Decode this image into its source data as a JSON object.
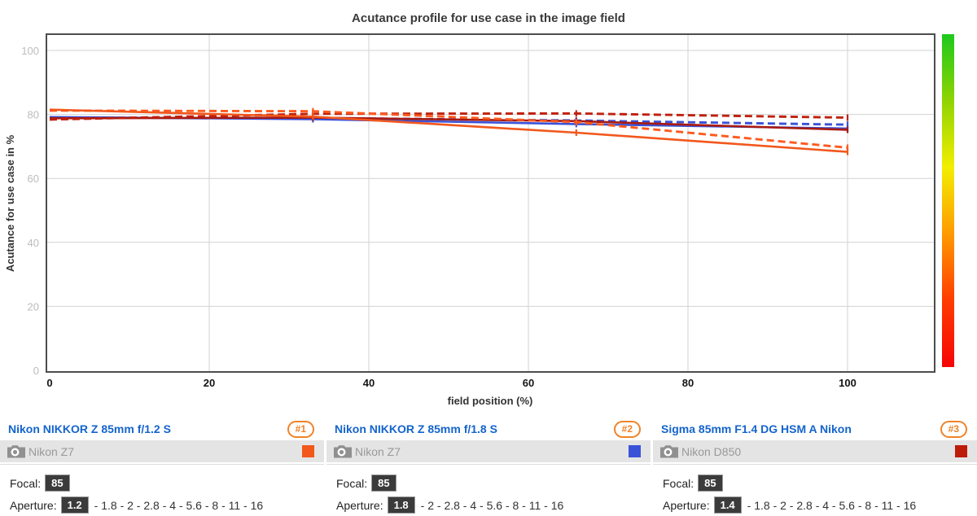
{
  "chart_data": {
    "type": "line",
    "title": "Acutance profile for use case in the image field",
    "xlabel": "field position (%)",
    "ylabel": "Acutance for use case in %",
    "xlim": [
      0,
      111
    ],
    "ylim": [
      0,
      105
    ],
    "xticks": [
      0,
      20,
      40,
      60,
      80,
      100
    ],
    "yticks": [
      0,
      20,
      40,
      60,
      80,
      100
    ],
    "grid": true,
    "x": [
      0,
      33,
      66,
      100
    ],
    "series": [
      {
        "id": "nikon-z-85mm-f1.8-dashed",
        "lens": "Nikon NIKKOR Z 85mm f/1.8 S",
        "aperture": "1.8",
        "style": "dashed",
        "color": "#3a52d8",
        "values": [
          79.0,
          78.9,
          78.1,
          76.8
        ]
      },
      {
        "id": "nikon-z-85mm-f1.8-solid",
        "lens": "Nikon NIKKOR Z 85mm f/1.8 S",
        "aperture": "1.8",
        "style": "solid",
        "color": "#3a52d8",
        "values": [
          79.2,
          78.5,
          77.0,
          75.6
        ]
      },
      {
        "id": "sigma-85mm-f1.4-solid",
        "lens": "Sigma 85mm F1.4 DG HSM A Nikon",
        "aperture": "1.4",
        "style": "solid",
        "color": "#a81a10",
        "values": [
          78.8,
          79.0,
          77.9,
          75.2
        ]
      },
      {
        "id": "sigma-85mm-f1.4-dashed",
        "lens": "Sigma 85mm F1.4 DG HSM A Nikon",
        "aperture": "1.4",
        "style": "dashed",
        "color": "#c0200e",
        "values": [
          78.4,
          80.2,
          80.3,
          79.0
        ]
      },
      {
        "id": "nikon-z-85mm-f1.2-dashed",
        "lens": "Nikon NIKKOR Z 85mm f/1.2 S",
        "aperture": "1.2",
        "style": "dashed",
        "color": "#ff5a1e",
        "values": [
          81.2,
          81.0,
          77.6,
          69.6
        ]
      },
      {
        "id": "nikon-z-85mm-f1.2-solid",
        "lens": "Nikon NIKKOR Z 85mm f/1.2 S",
        "aperture": "1.2",
        "style": "solid",
        "color": "#f2571c",
        "values": [
          81.5,
          79.3,
          74.3,
          68.3
        ]
      }
    ],
    "legend_position": "bottom",
    "colorbar": {
      "position": "right",
      "stops_top_to_bottom": [
        "#1dc91d",
        "#8fd400",
        "#f2ee00",
        "#ff9a00",
        "#ff3c00",
        "#f50505"
      ]
    }
  },
  "panels": [
    {
      "rank_badge": "#1",
      "lens_name": "Nikon NIKKOR Z 85mm f/1.2 S",
      "camera": "Nikon Z7",
      "swatch_color": "#f2571c",
      "focal_label": "Focal:",
      "focal_value": "85",
      "aperture_label": "Aperture:",
      "aperture_selected": "1.2",
      "aperture_rest": "- 1.8 - 2 - 2.8 - 4 - 5.6 - 8 - 11 - 16"
    },
    {
      "rank_badge": "#2",
      "lens_name": "Nikon NIKKOR Z 85mm f/1.8 S",
      "camera": "Nikon Z7",
      "swatch_color": "#3a52d8",
      "focal_label": "Focal:",
      "focal_value": "85",
      "aperture_label": "Aperture:",
      "aperture_selected": "1.8",
      "aperture_rest": "- 2 - 2.8 - 4 - 5.6 - 8 - 11 - 16"
    },
    {
      "rank_badge": "#3",
      "lens_name": "Sigma 85mm F1.4 DG HSM A Nikon",
      "camera": "Nikon D850",
      "swatch_color": "#bd1c08",
      "focal_label": "Focal:",
      "focal_value": "85",
      "aperture_label": "Aperture:",
      "aperture_selected": "1.4",
      "aperture_rest": "- 1.8 - 2 - 2.8 - 4 - 5.6 - 8 - 11 - 16"
    }
  ]
}
